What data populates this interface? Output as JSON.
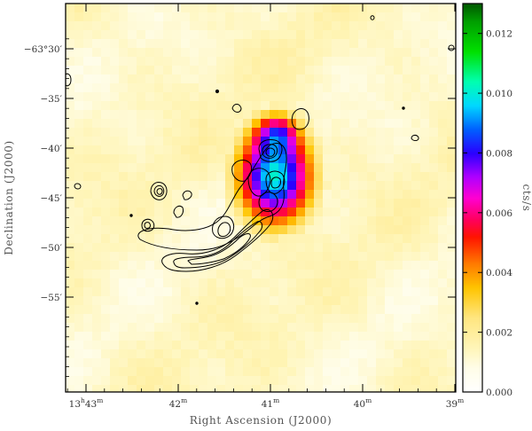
{
  "chart_data": {
    "type": "heatmap",
    "title": "",
    "xlabel": "Right Ascension (J2000)",
    "ylabel": "Declination (J2000)",
    "colorbar_label": "cts/s",
    "x_ticks": [
      {
        "value": 0,
        "label_main": "13",
        "label_sup1": "h",
        "label_mid": "43",
        "label_sup2": "m"
      },
      {
        "value": 1,
        "label_main": "42",
        "label_sup1": "m",
        "label_mid": "",
        "label_sup2": ""
      },
      {
        "value": 2,
        "label_main": "41",
        "label_sup1": "m",
        "label_mid": "",
        "label_sup2": ""
      },
      {
        "value": 3,
        "label_main": "40",
        "label_sup1": "m",
        "label_mid": "",
        "label_sup2": ""
      },
      {
        "value": 4,
        "label_main": "39",
        "label_sup1": "m",
        "label_mid": "",
        "label_sup2": ""
      }
    ],
    "y_ticks": [
      {
        "value": -30,
        "label": "−63°30′"
      },
      {
        "value": -35,
        "label": "−35′"
      },
      {
        "value": -40,
        "label": "−40′"
      },
      {
        "value": -45,
        "label": "−45′"
      },
      {
        "value": -50,
        "label": "−50′"
      },
      {
        "value": -55,
        "label": "−55′"
      }
    ],
    "colorbar": {
      "min": 0.0,
      "max": 0.013,
      "ticks": [
        "0.000",
        "0.002",
        "0.004",
        "0.006",
        "0.008",
        "0.010",
        "0.012"
      ],
      "tick_values": [
        0.0,
        0.002,
        0.004,
        0.006,
        0.008,
        0.01,
        0.012
      ],
      "colors": [
        {
          "v": 0.0,
          "c": "#ffffff"
        },
        {
          "v": 0.0008,
          "c": "#fffde8"
        },
        {
          "v": 0.0015,
          "c": "#fff5b8"
        },
        {
          "v": 0.0025,
          "c": "#ffe680"
        },
        {
          "v": 0.0035,
          "c": "#ffc400"
        },
        {
          "v": 0.0043,
          "c": "#ff7a00"
        },
        {
          "v": 0.0052,
          "c": "#ff1400"
        },
        {
          "v": 0.0058,
          "c": "#ff0060"
        },
        {
          "v": 0.0065,
          "c": "#ff00d0"
        },
        {
          "v": 0.0072,
          "c": "#b000ff"
        },
        {
          "v": 0.008,
          "c": "#2a00ff"
        },
        {
          "v": 0.0088,
          "c": "#0060ff"
        },
        {
          "v": 0.0096,
          "c": "#00d8ff"
        },
        {
          "v": 0.0104,
          "c": "#00ffb0"
        },
        {
          "v": 0.0114,
          "c": "#00e000"
        },
        {
          "v": 0.0124,
          "c": "#00a000"
        },
        {
          "v": 0.013,
          "c": "#005a00"
        }
      ]
    },
    "source": {
      "ra_offset": 2.05,
      "dec": -42.8,
      "peak": 0.0098
    }
  }
}
